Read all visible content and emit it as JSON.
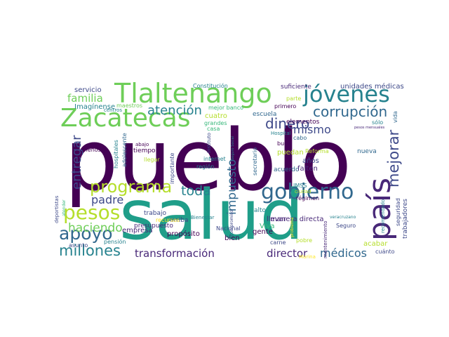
{
  "colors": {
    "background": "#ffffff",
    "dark_purple": "#440154",
    "purple": "#482878",
    "indigo": "#3e4989",
    "blue": "#31688e",
    "teal_blue": "#26828e",
    "teal": "#1f9e89",
    "green": "#35b779",
    "light_green": "#6ece58",
    "lime": "#b5de2b",
    "yellow": "#fde725"
  },
  "words": [
    {
      "text": "pueblo",
      "color": "#440154"
    },
    {
      "text": "salud",
      "color": "#1f9e89"
    },
    {
      "text": "Tlaltenango",
      "color": "#6ece58"
    },
    {
      "text": "Zacatecas",
      "color": "#6ece58"
    },
    {
      "text": "jóvenes",
      "color": "#26828e"
    },
    {
      "text": "país",
      "color": "#482878"
    },
    {
      "text": "gobierno",
      "color": "#31688e"
    },
    {
      "text": "pesos",
      "color": "#b5de2b"
    },
    {
      "text": "programa",
      "color": "#b5de2b"
    },
    {
      "text": "apoyo",
      "color": "#31688e"
    },
    {
      "text": "millones",
      "color": "#26828e"
    },
    {
      "text": "corrupción",
      "color": "#31688e"
    },
    {
      "text": "mejorar",
      "color": "#3e4989"
    },
    {
      "text": "dinero",
      "color": "#3e4989"
    },
    {
      "text": "toda",
      "color": "#26828e"
    },
    {
      "text": "atención",
      "color": "#26828e"
    },
    {
      "text": "familia",
      "color": "#6ece58"
    },
    {
      "text": "entregar",
      "color": "#3e4989"
    },
    {
      "text": "padre",
      "color": "#3e4989"
    },
    {
      "text": "haciendo",
      "color": "#6ece58"
    },
    {
      "text": "impuesto",
      "color": "#31688e"
    },
    {
      "text": "mismo",
      "color": "#3e4989"
    },
    {
      "text": "transformación",
      "color": "#482878"
    },
    {
      "text": "director",
      "color": "#482878"
    },
    {
      "text": "médicos",
      "color": "#31688e"
    },
    {
      "text": "servicio",
      "color": "#3e4989"
    },
    {
      "text": "Imagínense",
      "color": "#26828e"
    },
    {
      "text": "maestros",
      "color": "#6ece58"
    },
    {
      "text": "centros",
      "color": "#26828e"
    },
    {
      "text": "cuatro",
      "color": "#b5de2b"
    },
    {
      "text": "grandes",
      "color": "#35b779"
    },
    {
      "text": "mejor banco",
      "color": "#35b779"
    },
    {
      "text": "casa",
      "color": "#35b779"
    },
    {
      "text": "escuela",
      "color": "#31688e"
    },
    {
      "text": "primero",
      "color": "#440154"
    },
    {
      "text": "suficiente",
      "color": "#482878"
    },
    {
      "text": "Constitución",
      "color": "#26828e"
    },
    {
      "text": "parte",
      "color": "#b5de2b"
    },
    {
      "text": "unidades médicas",
      "color": "#3e4989"
    },
    {
      "text": "elementos",
      "color": "#440154"
    },
    {
      "text": "sólo",
      "color": "#26828e"
    },
    {
      "text": "vida",
      "color": "#31688e"
    },
    {
      "text": "pesos mensuales",
      "color": "#482878"
    },
    {
      "text": "Hospital",
      "color": "#26828e"
    },
    {
      "text": "cabo",
      "color": "#31688e"
    },
    {
      "text": "buen",
      "color": "#440154"
    },
    {
      "text": "puedan",
      "color": "#b5de2b"
    },
    {
      "text": "Reforma",
      "color": "#b5de2b"
    },
    {
      "text": "nueva",
      "color": "#31688e"
    },
    {
      "text": "menos",
      "color": "#440154"
    },
    {
      "text": "abajo",
      "color": "#440154"
    },
    {
      "text": "tiempo",
      "color": "#440154"
    },
    {
      "text": "llegar",
      "color": "#b5de2b"
    },
    {
      "text": "hospitales",
      "color": "#26828e"
    },
    {
      "text": "adolescente",
      "color": "#31688e"
    },
    {
      "text": "importante",
      "color": "#3e4989"
    },
    {
      "text": "región",
      "color": "#26828e"
    },
    {
      "text": "internet",
      "color": "#26828e"
    },
    {
      "text": "Instituto",
      "color": "#3e4989"
    },
    {
      "text": "secretario",
      "color": "#31688e"
    },
    {
      "text": "acuerdo",
      "color": "#31688e"
    },
    {
      "text": "años",
      "color": "#3e4989"
    },
    {
      "text": "falten",
      "color": "#482878"
    },
    {
      "text": "seguridad",
      "color": "#3e4989"
    },
    {
      "text": "manera directa",
      "color": "#482878"
    },
    {
      "text": "veracruzano",
      "color": "#26828e"
    },
    {
      "text": "IMSS",
      "color": "#26828e"
    },
    {
      "text": "ciudad",
      "color": "#b5de2b"
    },
    {
      "text": "régimen",
      "color": "#440154"
    },
    {
      "text": "deportistas",
      "color": "#3e4989"
    },
    {
      "text": "atender",
      "color": "#35b779"
    },
    {
      "text": "presupuesto",
      "color": "#482878"
    },
    {
      "text": "trabajo",
      "color": "#3e4989"
    },
    {
      "text": "arriba",
      "color": "#3e4989"
    },
    {
      "text": "recursos",
      "color": "#fde725"
    },
    {
      "text": "Bienestar",
      "color": "#26828e"
    },
    {
      "text": "compromiso",
      "color": "#3e4989"
    },
    {
      "text": "alto",
      "color": "#26828e"
    },
    {
      "text": "llevar",
      "color": "#482878"
    },
    {
      "text": "Viva",
      "color": "#35b779"
    },
    {
      "text": "problema",
      "color": "#fde725"
    },
    {
      "text": "pobre",
      "color": "#b5de2b"
    },
    {
      "text": "Seguro",
      "color": "#3e4989"
    },
    {
      "text": "Seguro Social",
      "color": "#26828e"
    },
    {
      "text": "recomendado",
      "color": "#26828e"
    },
    {
      "text": "trabajadores",
      "color": "#3e4989"
    },
    {
      "text": "acabar",
      "color": "#b5de2b"
    },
    {
      "text": "mantenimiento",
      "color": "#482878"
    },
    {
      "text": "carne",
      "color": "#3e4989"
    },
    {
      "text": "empresa",
      "color": "#482878"
    },
    {
      "text": "asunto",
      "color": "#3e4989"
    },
    {
      "text": "pensión",
      "color": "#26828e"
    },
    {
      "text": "propósito",
      "color": "#440154"
    },
    {
      "text": "Nacional",
      "color": "#3e4989"
    },
    {
      "text": "gente",
      "color": "#440154"
    },
    {
      "text": "bien",
      "color": "#440154"
    },
    {
      "text": "Marina",
      "color": "#fde725"
    },
    {
      "text": "cuánto",
      "color": "#3e4989"
    }
  ]
}
